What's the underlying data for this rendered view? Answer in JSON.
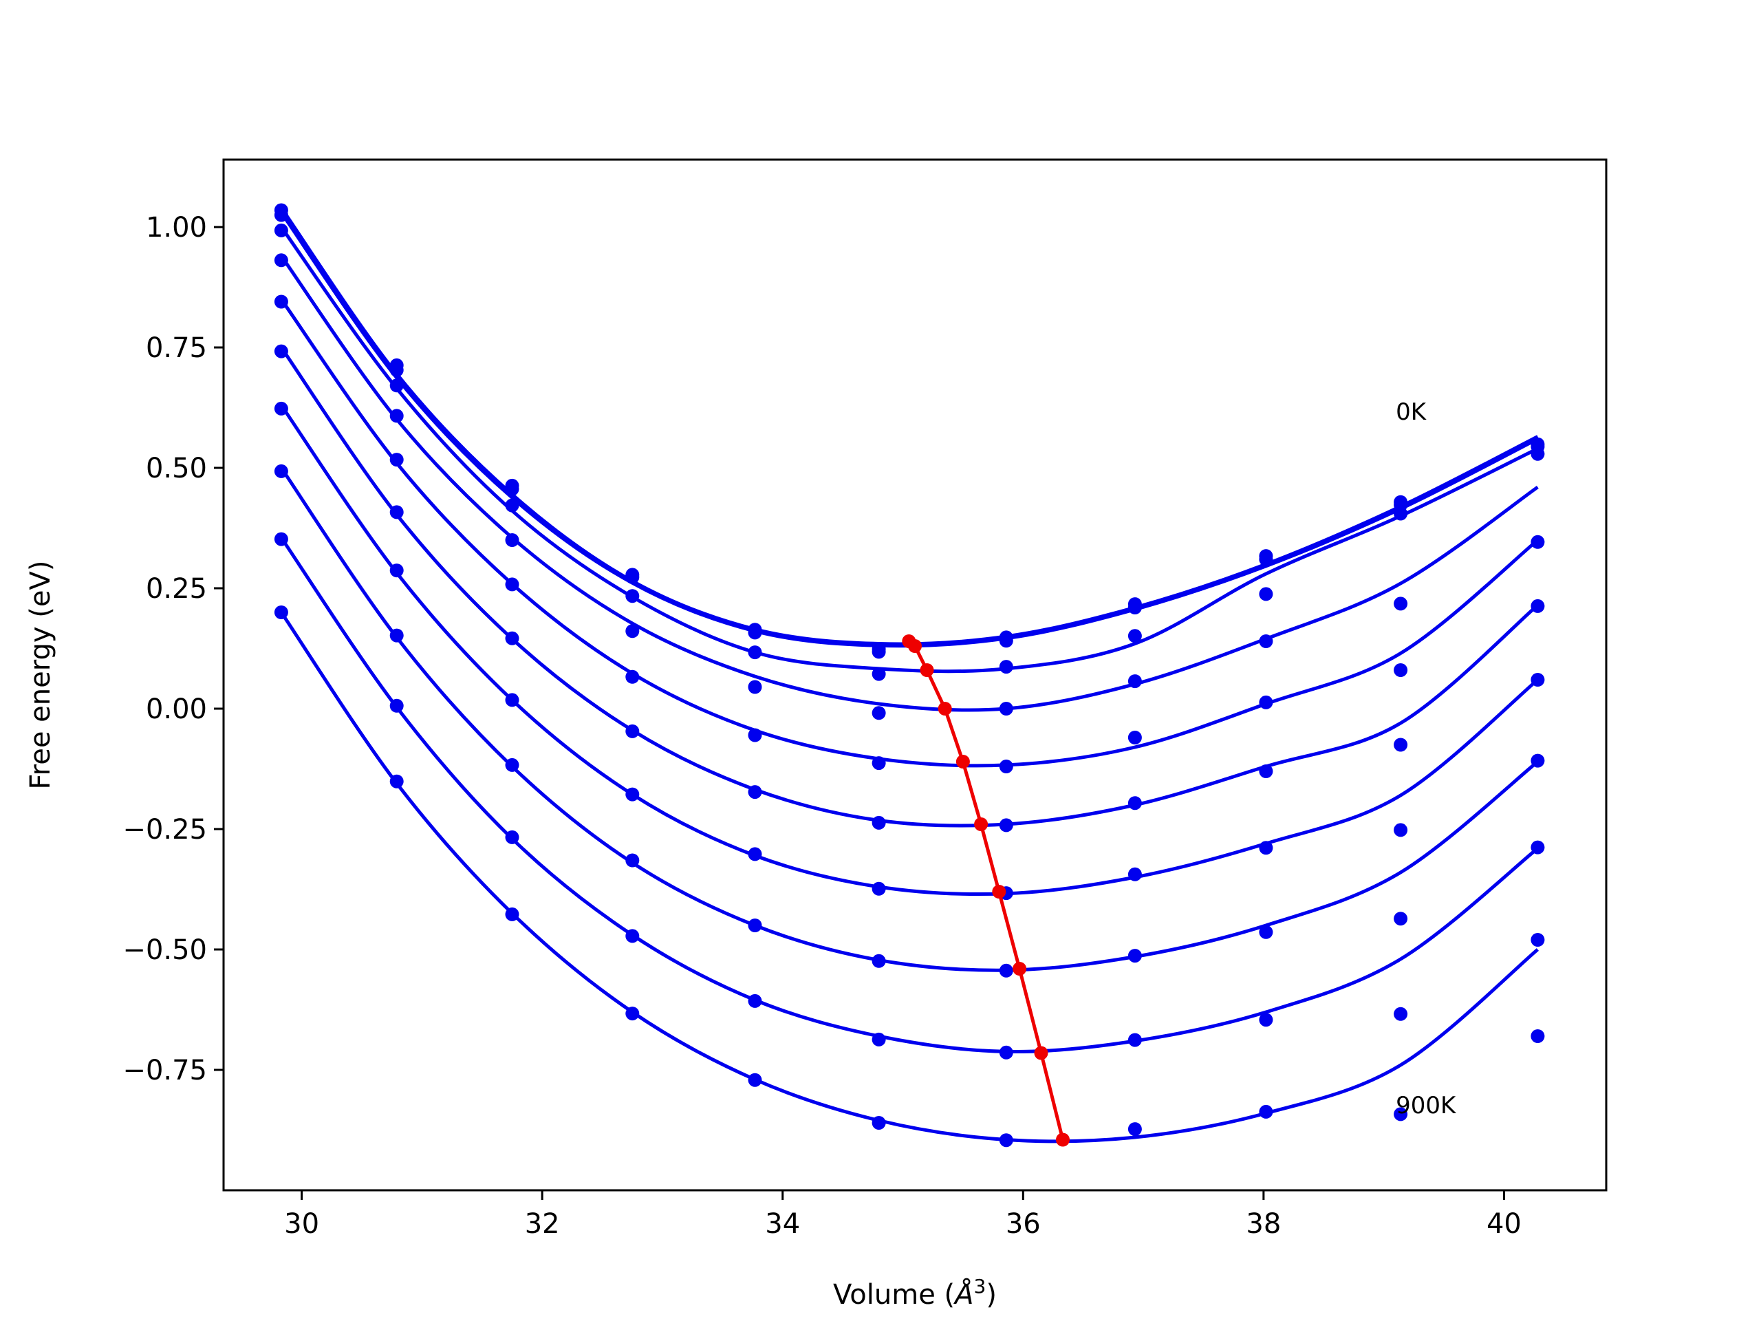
{
  "chart_data": {
    "type": "scatter",
    "title": "",
    "xlabel": "Volume ($\\AA^3$)",
    "ylabel": "Free energy (eV)",
    "xlim": [
      29.35,
      40.85
    ],
    "ylim": [
      -1.0,
      1.14
    ],
    "xticks": [
      30,
      32,
      34,
      36,
      38,
      40
    ],
    "xtick_labels": [
      "30",
      "32",
      "34",
      "36",
      "38",
      "40"
    ],
    "yticks": [
      1.0,
      0.75,
      0.5,
      0.25,
      0.0,
      -0.25,
      -0.5,
      -0.75
    ],
    "ytick_labels": [
      "1.00",
      "0.75",
      "0.50",
      "0.25",
      "0.00",
      "−0.25",
      "−0.50",
      "−0.75"
    ],
    "grid": false,
    "annotations": [
      {
        "text": "0K",
        "x": 39.1,
        "y": 0.6
      },
      {
        "text": "900K",
        "x": 39.1,
        "y": -0.84
      }
    ],
    "volumes": [
      29.83,
      30.79,
      31.75,
      32.75,
      33.77,
      34.8,
      35.86,
      36.93,
      38.02,
      39.14,
      40.28
    ],
    "series": [
      {
        "values": [
          1.035,
          0.713,
          0.463,
          0.278,
          0.164,
          0.124,
          0.148,
          0.217,
          0.317,
          0.429,
          0.549
        ],
        "fit": [
          1.04,
          0.695,
          0.445,
          0.265,
          0.165,
          0.135,
          0.15,
          0.21,
          0.3,
          0.42,
          0.565
        ]
      },
      {
        "values": [
          1.025,
          0.703,
          0.456,
          0.273,
          0.158,
          0.118,
          0.141,
          0.21,
          0.31,
          0.423,
          0.544
        ],
        "fit": [
          1.03,
          0.687,
          0.438,
          0.261,
          0.161,
          0.131,
          0.146,
          0.206,
          0.296,
          0.415,
          0.56
        ]
      },
      {
        "values": [
          0.993,
          0.671,
          0.422,
          0.234,
          0.117,
          0.072,
          0.087,
          0.151,
          0.238,
          0.405,
          0.529
        ],
        "fit": [
          1.0,
          0.665,
          0.411,
          0.232,
          0.117,
          0.083,
          0.083,
          0.135,
          0.28,
          0.4,
          0.54
        ]
      },
      {
        "values": [
          0.931,
          0.608,
          0.35,
          0.161,
          0.045,
          -0.009,
          0.0,
          0.057,
          0.14,
          0.218,
          0.346
        ],
        "fit": [
          0.94,
          0.601,
          0.355,
          0.177,
          0.067,
          0.01,
          0.0,
          0.051,
          0.145,
          0.26,
          0.46
        ]
      },
      {
        "values": [
          0.845,
          0.517,
          0.258,
          0.066,
          -0.055,
          -0.113,
          -0.12,
          -0.06,
          0.013,
          0.08,
          0.213
        ],
        "fit": [
          0.85,
          0.51,
          0.259,
          0.073,
          -0.045,
          -0.104,
          -0.117,
          -0.08,
          0.01,
          0.115,
          0.35
        ]
      },
      {
        "values": [
          0.742,
          0.408,
          0.146,
          -0.047,
          -0.173,
          -0.237,
          -0.242,
          -0.196,
          -0.13,
          -0.075,
          0.06
        ],
        "fit": [
          0.75,
          0.403,
          0.145,
          -0.045,
          -0.168,
          -0.232,
          -0.24,
          -0.2,
          -0.12,
          -0.03,
          0.215
        ]
      },
      {
        "values": [
          0.623,
          0.287,
          0.018,
          -0.178,
          -0.302,
          -0.374,
          -0.383,
          -0.344,
          -0.289,
          -0.252,
          -0.108
        ],
        "fit": [
          0.63,
          0.282,
          0.018,
          -0.178,
          -0.305,
          -0.37,
          -0.384,
          -0.35,
          -0.28,
          -0.18,
          0.06
        ]
      },
      {
        "values": [
          0.493,
          0.152,
          -0.117,
          -0.315,
          -0.45,
          -0.524,
          -0.544,
          -0.513,
          -0.464,
          -0.436,
          -0.288
        ],
        "fit": [
          0.5,
          0.148,
          -0.12,
          -0.32,
          -0.45,
          -0.522,
          -0.543,
          -0.515,
          -0.45,
          -0.34,
          -0.11
        ]
      },
      {
        "values": [
          0.352,
          0.006,
          -0.267,
          -0.472,
          -0.607,
          -0.687,
          -0.714,
          -0.688,
          -0.646,
          -0.634,
          -0.48
        ],
        "fit": [
          0.355,
          0.003,
          -0.27,
          -0.47,
          -0.605,
          -0.68,
          -0.712,
          -0.69,
          -0.63,
          -0.52,
          -0.29
        ]
      },
      {
        "values": [
          0.2,
          -0.151,
          -0.427,
          -0.633,
          -0.771,
          -0.86,
          -0.896,
          -0.873,
          -0.837,
          -0.842,
          -0.68
        ],
        "fit": [
          0.2,
          -0.155,
          -0.425,
          -0.63,
          -0.77,
          -0.855,
          -0.895,
          -0.89,
          -0.84,
          -0.74,
          -0.5
        ]
      }
    ],
    "minima": {
      "x": [
        35.05,
        35.1,
        35.2,
        35.35,
        35.5,
        35.65,
        35.8,
        35.97,
        36.15,
        36.33
      ],
      "y": [
        0.14,
        0.13,
        0.08,
        0.0,
        -0.11,
        -0.24,
        -0.38,
        -0.54,
        -0.715,
        -0.895
      ]
    },
    "colors": {
      "series": "#0000ee",
      "minima": "#ee0000",
      "axes": "#000000"
    }
  }
}
